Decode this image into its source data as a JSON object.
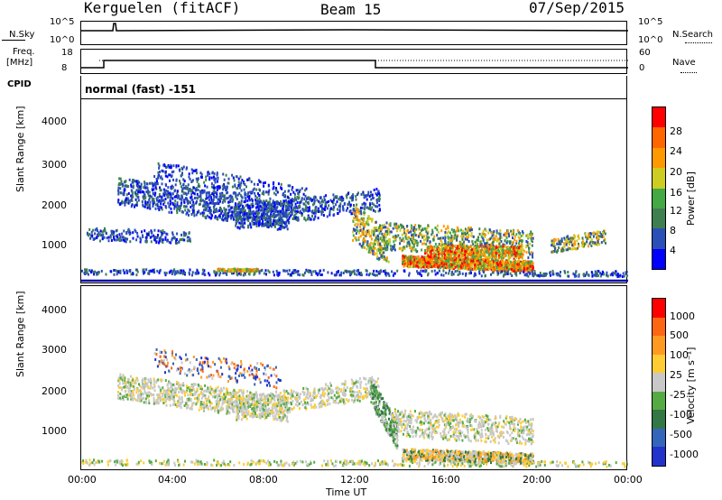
{
  "header": {
    "station": "Kerguelen (fitACF)",
    "beam": "Beam 15",
    "date": "07/Sep/2015"
  },
  "nsky_panel": {
    "left_label": "N.Sky",
    "right_label": "N.Search",
    "left_ticks": [
      "10^5",
      "10^0"
    ],
    "right_ticks": [
      "10^5",
      "10^0"
    ]
  },
  "freq_panel": {
    "left_label_1": "Freq.",
    "left_label_2": "[MHz]",
    "right_label": "Nave",
    "left_ticks": [
      "18",
      "8"
    ],
    "right_ticks": [
      "60",
      "0"
    ]
  },
  "cpid": {
    "label": "CPID",
    "value": "normal (fast) -151"
  },
  "chart_data": [
    {
      "type": "heatmap",
      "name": "power",
      "ylabel": "Slant Range [km]",
      "ylim": [
        180,
        4600
      ],
      "yticks": [
        "4000",
        "3000",
        "2000",
        "1000"
      ],
      "xticks": [
        "00:00",
        "04:00",
        "08:00",
        "12:00",
        "16:00",
        "20:00",
        "00:00"
      ],
      "colorbar": {
        "label": "Power [dB]",
        "ticks": [
          "28",
          "24",
          "20",
          "16",
          "12",
          "8",
          "4"
        ],
        "colors": [
          "#0000ff",
          "#2a4fb6",
          "#3f7f4f",
          "#44a844",
          "#cccc22",
          "#ff9900",
          "#ff6600",
          "#ff0000"
        ]
      }
    },
    {
      "type": "heatmap",
      "name": "velocity",
      "ylabel": "Slant Range [km]",
      "ylim": [
        180,
        4600
      ],
      "yticks": [
        "4000",
        "3000",
        "2000",
        "1000"
      ],
      "xticks": [
        "00:00",
        "04:00",
        "08:00",
        "12:00",
        "16:00",
        "20:00",
        "00:00"
      ],
      "xlabel": "Time UT",
      "colorbar": {
        "label": "Velocity [m s⁻¹]",
        "ticks": [
          "1000",
          "500",
          "100",
          "25",
          "-25",
          "-100",
          "-500",
          "-1000"
        ],
        "colors": [
          "#2233cc",
          "#3366bb",
          "#337744",
          "#55aa44",
          "#c8c8c8",
          "#ffcc33",
          "#ff9922",
          "#ff6611",
          "#ff0000"
        ]
      }
    }
  ]
}
